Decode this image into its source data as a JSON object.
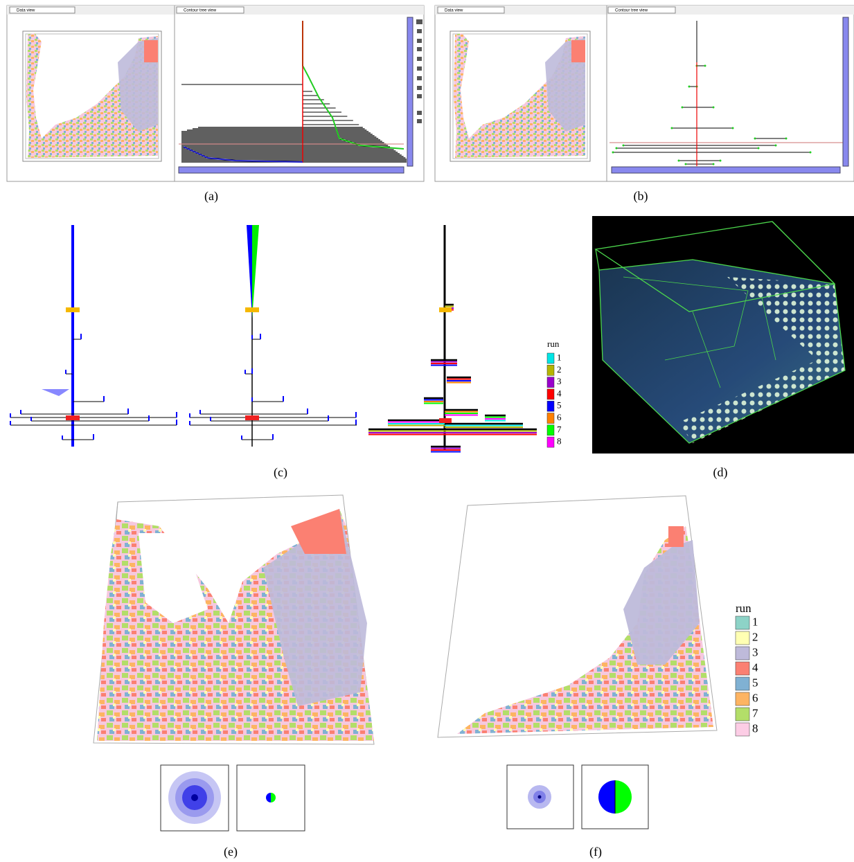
{
  "panels": {
    "a": {
      "left_window": {
        "title": "Data view"
      },
      "right_window": {
        "title": "Contour tree view"
      },
      "caption": "(a)"
    },
    "b": {
      "left_window": {
        "title": "Data view"
      },
      "right_window": {
        "title": "Contour tree view"
      },
      "caption": "(b)"
    },
    "c": {
      "caption": "(c)",
      "legend": {
        "title": "run",
        "items": [
          {
            "label": "1",
            "color": "#00e5e5"
          },
          {
            "label": "2",
            "color": "#b5b500"
          },
          {
            "label": "3",
            "color": "#9900cc"
          },
          {
            "label": "4",
            "color": "#ff0000"
          },
          {
            "label": "5",
            "color": "#0000ff"
          },
          {
            "label": "6",
            "color": "#ff8000"
          },
          {
            "label": "7",
            "color": "#00ff00"
          },
          {
            "label": "8",
            "color": "#ff00ff"
          }
        ]
      }
    },
    "d": {
      "caption": "(d)"
    },
    "e": {
      "caption": "(e)"
    },
    "f": {
      "caption": "(f)",
      "legend": {
        "title": "run",
        "items": [
          {
            "label": "1",
            "color": "#8dd3c7"
          },
          {
            "label": "2",
            "color": "#ffffb3"
          },
          {
            "label": "3",
            "color": "#bebada"
          },
          {
            "label": "4",
            "color": "#fb8072"
          },
          {
            "label": "5",
            "color": "#80b1d3"
          },
          {
            "label": "6",
            "color": "#fdb462"
          },
          {
            "label": "7",
            "color": "#b3de69"
          },
          {
            "label": "8",
            "color": "#fccde5"
          }
        ]
      }
    }
  }
}
